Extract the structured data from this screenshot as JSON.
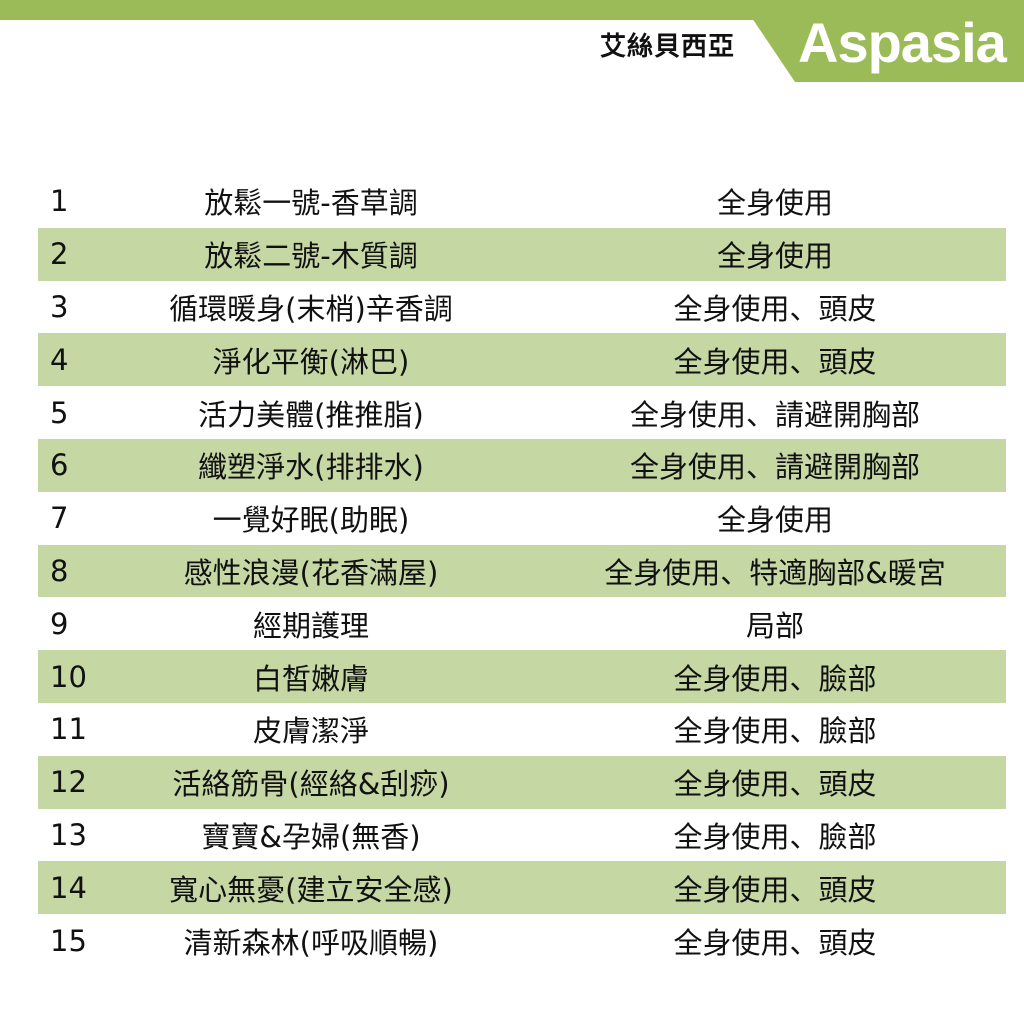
{
  "header": {
    "brand_cn": "艾絲貝西亞",
    "brand_en": "Aspasia",
    "accent_color": "#9bbb59",
    "stripe_color": "#c5d8a4"
  },
  "rows": [
    {
      "num": "1",
      "name": "放鬆一號-香草調",
      "use": "全身使用"
    },
    {
      "num": "2",
      "name": "放鬆二號-木質調",
      "use": "全身使用"
    },
    {
      "num": "3",
      "name": "循環暖身(末梢)辛香調",
      "use": "全身使用、頭皮"
    },
    {
      "num": "4",
      "name": "淨化平衡(淋巴)",
      "use": "全身使用、頭皮"
    },
    {
      "num": "5",
      "name": "活力美體(推推脂)",
      "use": "全身使用、請避開胸部"
    },
    {
      "num": "6",
      "name": "纖塑淨水(排排水)",
      "use": "全身使用、請避開胸部"
    },
    {
      "num": "7",
      "name": "一覺好眠(助眠)",
      "use": "全身使用"
    },
    {
      "num": "8",
      "name": "感性浪漫(花香滿屋)",
      "use": "全身使用、特適胸部&暖宮"
    },
    {
      "num": "9",
      "name": "經期護理",
      "use": "局部"
    },
    {
      "num": "10",
      "name": "白皙嫩膚",
      "use": "全身使用、臉部"
    },
    {
      "num": "11",
      "name": "皮膚潔淨",
      "use": "全身使用、臉部"
    },
    {
      "num": "12",
      "name": "活絡筋骨(經絡&刮痧)",
      "use": "全身使用、頭皮"
    },
    {
      "num": "13",
      "name": "寶寶&孕婦(無香)",
      "use": "全身使用、臉部"
    },
    {
      "num": "14",
      "name": "寬心無憂(建立安全感)",
      "use": "全身使用、頭皮"
    },
    {
      "num": "15",
      "name": "清新森林(呼吸順暢)",
      "use": "全身使用、頭皮"
    }
  ]
}
